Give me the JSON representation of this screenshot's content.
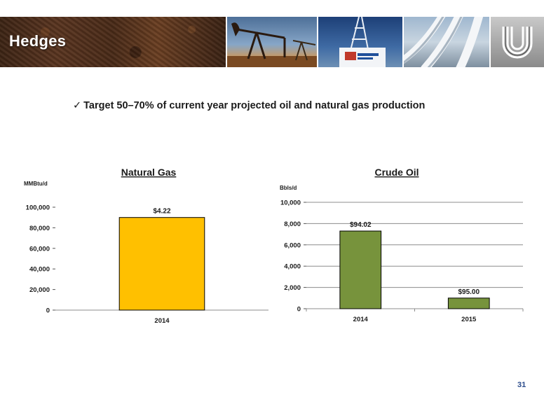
{
  "header": {
    "title": "Hedges"
  },
  "bullet": {
    "check": "✓",
    "text": "Target 50–70% of current year projected oil and natural gas production"
  },
  "colors": {
    "gas_bar": "#FFC000",
    "oil_bar": "#77933C",
    "bar_outline": "#000000",
    "grid": "#8c8c8c",
    "page_number": "#2C4C8C"
  },
  "page": {
    "number": "31"
  },
  "chart_data": [
    {
      "type": "bar",
      "title": "Natural Gas",
      "ylabel": "MMBtu/d",
      "xlabel": "",
      "categories": [
        "2014"
      ],
      "values": [
        90000
      ],
      "data_labels": [
        "$4.22"
      ],
      "ylim": [
        0,
        100000
      ],
      "yticks": [
        0,
        20000,
        40000,
        60000,
        80000,
        100000
      ],
      "ytick_labels": [
        "0",
        "20,000",
        "40,000",
        "60,000",
        "80,000",
        "100,000"
      ],
      "grid": false,
      "color": "#FFC000"
    },
    {
      "type": "bar",
      "title": "Crude Oil",
      "ylabel": "Bbls/d",
      "xlabel": "",
      "categories": [
        "2014",
        "2015"
      ],
      "values": [
        7300,
        1000
      ],
      "data_labels": [
        "$94.02",
        "$95.00"
      ],
      "ylim": [
        0,
        10000
      ],
      "yticks": [
        0,
        2000,
        4000,
        6000,
        8000,
        10000
      ],
      "ytick_labels": [
        "0",
        "2,000",
        "4,000",
        "6,000",
        "8,000",
        "10,000"
      ],
      "grid": true,
      "color": "#77933C"
    }
  ]
}
